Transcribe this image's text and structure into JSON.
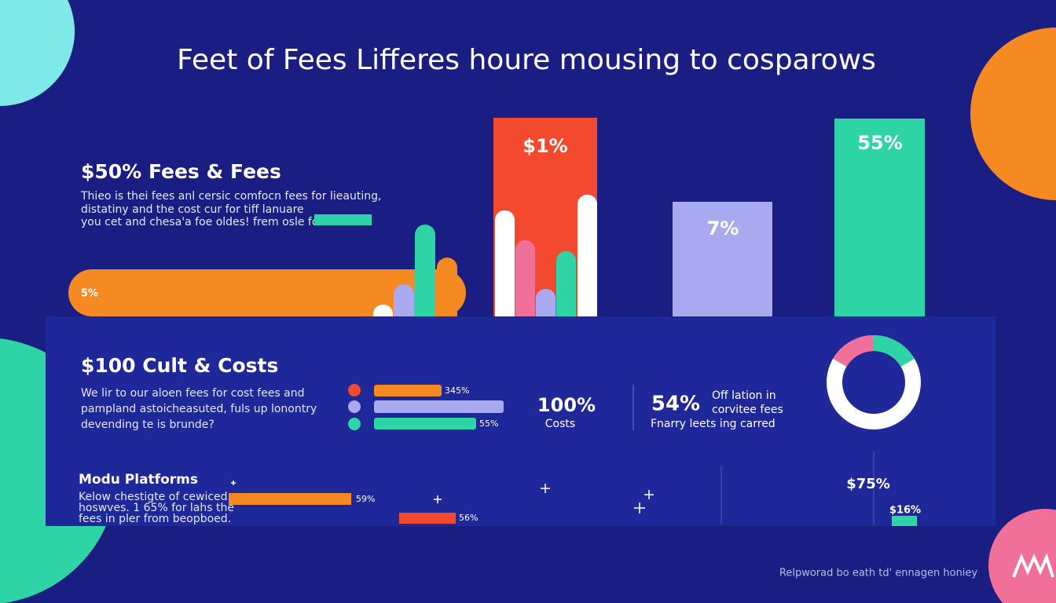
{
  "title": "Feet of Fees Lifferes houre mousing to cosparows",
  "section1": {
    "heading": "$50% Fees & Fees",
    "body": [
      "Thieo is thei fees anl cersic comfocn fees for lieauting,",
      "distatiny and the cost cur for tiff lanuare",
      "you cet and chesa'a foe oldes! frem osle for"
    ],
    "pill_label": "5%",
    "columns": [
      "$1%",
      "7%",
      "55%"
    ]
  },
  "section2": {
    "heading": "$100 Cult & Costs",
    "body": [
      "We lir to our aloen fees for cost fees and",
      "pampland astoicheasuted, fuls up lonontry",
      "devending te is brunde?"
    ],
    "legend_labels": [
      "345%",
      "55%"
    ],
    "stat1": {
      "value": "100%",
      "caption": "Costs"
    },
    "stat2": {
      "value": "54%",
      "lines": [
        "Off lation in",
        "corvitee fees"
      ],
      "caption": "Fnarry leets ing carred"
    }
  },
  "section3": {
    "heading": "Modu Platforms",
    "body": [
      "Kelow chestigte of cewiced",
      "hoswves. 1 65% for lahs the",
      "fees in pler from beopboed."
    ],
    "bar_labels": [
      "59%",
      "56%"
    ],
    "right_labels": [
      "$75%",
      "$16%"
    ]
  },
  "footer": "Relpworad bo eath td' ennagen honiey"
}
